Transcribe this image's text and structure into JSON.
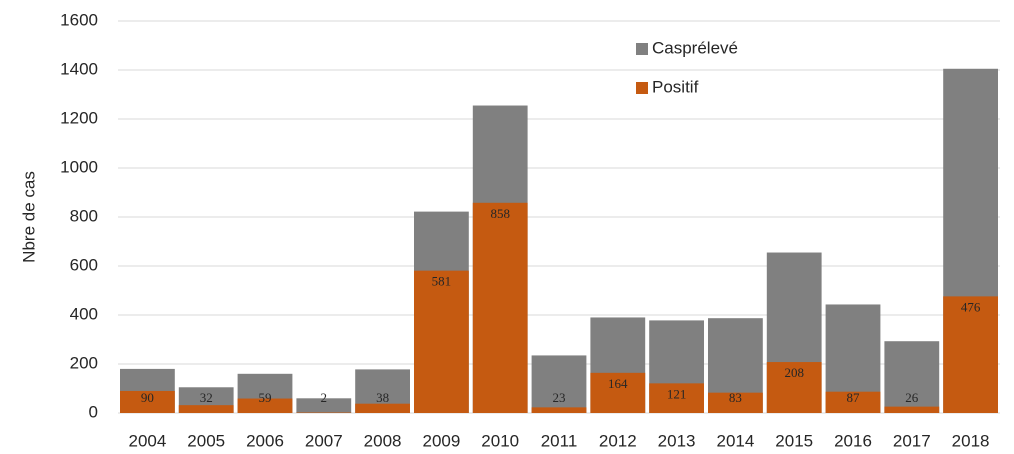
{
  "chart_data": {
    "type": "bar",
    "barmode": "overlay",
    "y_label": "Nbre de cas",
    "categories": [
      "2004",
      "2005",
      "2006",
      "2007",
      "2008",
      "2009",
      "2010",
      "2011",
      "2012",
      "2013",
      "2014",
      "2015",
      "2016",
      "2017",
      "2018"
    ],
    "series": [
      {
        "name": "Casprélevé",
        "color": "#808080",
        "values": [
          180,
          105,
          160,
          60,
          178,
          822,
          1255,
          235,
          390,
          378,
          387,
          655,
          443,
          293,
          1405
        ]
      },
      {
        "name": "Positif",
        "color": "#c55a11",
        "values": [
          90,
          32,
          59,
          2,
          38,
          581,
          858,
          23,
          164,
          121,
          83,
          208,
          87,
          26,
          476
        ],
        "data_labels": true
      }
    ],
    "ylim": [
      0,
      1600
    ],
    "yticks": [
      0,
      200,
      400,
      600,
      800,
      1000,
      1200,
      1400,
      1600
    ],
    "grid": true,
    "legend": "top-right"
  }
}
